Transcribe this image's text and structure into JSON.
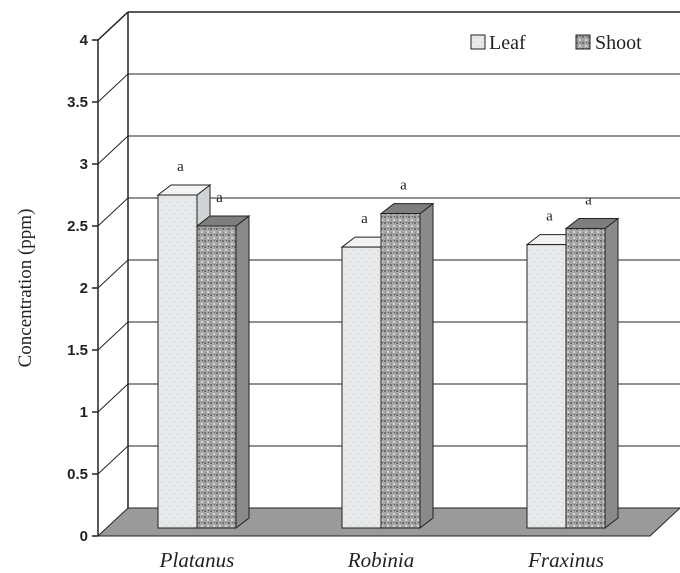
{
  "chart_data": {
    "type": "bar",
    "title": "",
    "ylabel": "Concentration (ppm)",
    "xlabel": "",
    "ylim": [
      0,
      4
    ],
    "yticks": [
      "0",
      "0.5",
      "1",
      "1.5",
      "2",
      "2.5",
      "3",
      "3.5",
      "4"
    ],
    "categories": [
      "Platanus",
      "Robinia",
      "Fraxinus"
    ],
    "series": [
      {
        "name": "Leaf",
        "values": [
          2.75,
          2.33,
          2.35
        ],
        "annotations": [
          "a",
          "a",
          "a"
        ],
        "color": "#e6e8ea"
      },
      {
        "name": "Shoot",
        "values": [
          2.5,
          2.6,
          2.48
        ],
        "annotations": [
          "a",
          "a",
          "a"
        ],
        "color": "#a3a3a3"
      }
    ],
    "legend_position": "top-right",
    "grid": true,
    "style": "3d"
  }
}
